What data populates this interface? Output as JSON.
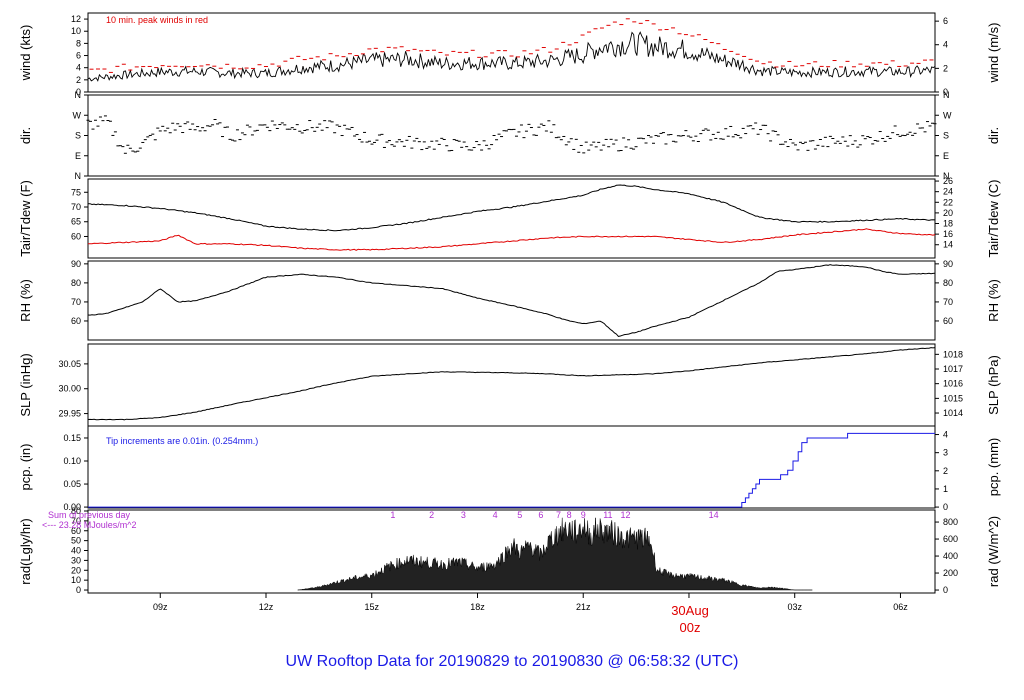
{
  "title": "UW Rooftop Data for 20190829  to  20190830 @ 06:58:32  (UTC)",
  "colors": {
    "black": "#000000",
    "red": "#e00000",
    "blue": "#1a1ae6",
    "purple": "#b030d0"
  },
  "x_axis": {
    "ticks": [
      {
        "t": 9,
        "label": "09z"
      },
      {
        "t": 12,
        "label": "12z"
      },
      {
        "t": 15,
        "label": "15z"
      },
      {
        "t": 18,
        "label": "18z"
      },
      {
        "t": 21,
        "label": "21z"
      },
      {
        "t": 24,
        "label": "00z"
      },
      {
        "t": 27,
        "label": "03z"
      },
      {
        "t": 30,
        "label": "06z"
      }
    ],
    "range": [
      6.95,
      30.98
    ],
    "date_label": "30Aug",
    "date_sub": "00z"
  },
  "chart_data": [
    {
      "type": "line",
      "ylabel": "wind (kts)",
      "ylabel_right": "wind (m/s)",
      "ylim": [
        0,
        13
      ],
      "yticks": [
        0,
        2,
        4,
        6,
        8,
        10,
        12
      ],
      "yticks_right": [
        {
          "v": 0,
          "label": "0"
        },
        {
          "v": 3.89,
          "label": "2"
        },
        {
          "v": 7.78,
          "label": "4"
        },
        {
          "v": 11.66,
          "label": "6"
        }
      ],
      "annotation": "10 min. peak winds in red",
      "series": [
        {
          "name": "wind",
          "color": "#000000",
          "x": [
            6.95,
            8,
            9,
            10,
            11,
            12,
            13,
            14,
            15,
            16,
            17,
            18,
            19,
            20,
            21,
            21.5,
            22,
            22.5,
            23,
            23.5,
            24,
            24.5,
            25,
            25.5,
            26,
            27,
            28,
            29,
            30,
            30.98
          ],
          "y": [
            2.2,
            2.8,
            3.3,
            3.4,
            3.1,
            3.1,
            4.0,
            4.4,
            5.2,
            5.4,
            4.7,
            4.8,
            4.7,
            5.1,
            6.2,
            7.4,
            7.8,
            8.0,
            7.5,
            7.3,
            6.9,
            6.0,
            5.2,
            4.6,
            3.5,
            3.2,
            3.3,
            3.4,
            3.3,
            3.6
          ]
        },
        {
          "name": "peak",
          "color": "#e00000",
          "x": [
            6.95,
            8,
            9,
            10,
            11,
            12,
            13,
            14,
            15,
            16,
            17,
            18,
            19,
            20,
            21,
            21.5,
            22,
            22.5,
            23,
            23.5,
            24,
            24.5,
            25,
            25.5,
            26,
            27,
            28,
            29,
            30,
            30.98
          ],
          "y": [
            3.4,
            4.0,
            4.5,
            4.6,
            4.3,
            4.4,
            5.4,
            5.9,
            7.0,
            7.0,
            6.2,
            6.3,
            6.2,
            6.9,
            9.0,
            10.5,
            11.5,
            12.0,
            11.0,
            10.5,
            9.5,
            8.5,
            7.2,
            6.5,
            5.0,
            4.4,
            4.6,
            4.7,
            4.6,
            5.0
          ]
        }
      ]
    },
    {
      "type": "scatter",
      "ylabel": "dir.",
      "ylabel_right": "dir.",
      "ylim": [
        0,
        360
      ],
      "yticks": [
        {
          "v": 0,
          "label": "N"
        },
        {
          "v": 90,
          "label": "E"
        },
        {
          "v": 180,
          "label": "S"
        },
        {
          "v": 270,
          "label": "W"
        },
        {
          "v": 360,
          "label": "N"
        }
      ],
      "series": [
        {
          "name": "dir",
          "color": "#000000",
          "x": [
            6.95,
            7.5,
            8,
            8.5,
            9,
            9.5,
            10,
            10.5,
            11,
            11.5,
            12,
            13,
            14,
            15,
            16,
            17,
            18,
            19,
            20,
            21,
            22,
            23,
            24,
            25,
            26,
            27,
            28,
            29,
            30,
            30.98
          ],
          "y": [
            230,
            240,
            110,
            140,
            200,
            220,
            210,
            230,
            180,
            200,
            230,
            220,
            215,
            160,
            150,
            140,
            130,
            190,
            220,
            120,
            140,
            160,
            180,
            190,
            210,
            130,
            150,
            160,
            200,
            220
          ]
        }
      ]
    },
    {
      "type": "line",
      "ylabel": "Tair/Tdew (F)",
      "ylabel_right": "Tair/Tdew (C)",
      "ylim": [
        52.7,
        79.5
      ],
      "yticks": [
        60,
        65,
        70,
        75
      ],
      "yticks_right": [
        {
          "v": 57.2,
          "label": "14"
        },
        {
          "v": 60.8,
          "label": "16"
        },
        {
          "v": 64.4,
          "label": "18"
        },
        {
          "v": 68,
          "label": "20"
        },
        {
          "v": 71.6,
          "label": "22"
        },
        {
          "v": 75.2,
          "label": "24"
        },
        {
          "v": 78.8,
          "label": "26"
        }
      ],
      "series": [
        {
          "name": "Tair",
          "color": "#000000",
          "x": [
            6.95,
            8,
            9,
            10,
            11,
            12,
            13,
            14,
            15,
            16,
            17,
            18,
            19,
            20,
            21,
            21.5,
            22,
            22.5,
            23,
            24,
            25,
            26,
            27,
            28,
            29,
            30,
            30.98
          ],
          "y": [
            71,
            70.5,
            69.5,
            68,
            66,
            63.5,
            62.5,
            62,
            63,
            64.5,
            66.5,
            68.5,
            70,
            72,
            74,
            76,
            77.5,
            77,
            76,
            74.5,
            71.5,
            66.5,
            65,
            65,
            65.5,
            66,
            65.5
          ]
        },
        {
          "name": "Tdew",
          "color": "#e00000",
          "x": [
            6.95,
            8,
            9,
            9.5,
            10,
            11,
            12,
            13,
            14,
            15,
            16,
            17,
            18,
            19,
            20,
            21,
            22,
            23,
            24,
            25,
            26,
            27,
            28,
            29,
            30,
            30.98
          ],
          "y": [
            57.5,
            58,
            58.5,
            60.5,
            57.5,
            57.5,
            57,
            56,
            55.5,
            55.5,
            56,
            56.5,
            57.5,
            58.5,
            59.5,
            60,
            60,
            60,
            59,
            58,
            59,
            60.5,
            61.5,
            62.5,
            61,
            60.5
          ]
        }
      ]
    },
    {
      "type": "line",
      "ylabel": "RH (%)",
      "ylabel_right": "RH (%)",
      "ylim": [
        50,
        91.5
      ],
      "yticks": [
        60,
        70,
        80,
        90
      ],
      "yticks_right": [
        {
          "v": 60,
          "label": "60"
        },
        {
          "v": 70,
          "label": "70"
        },
        {
          "v": 80,
          "label": "80"
        },
        {
          "v": 90,
          "label": "90"
        }
      ],
      "series": [
        {
          "name": "RH",
          "color": "#000000",
          "x": [
            6.95,
            7.5,
            8,
            8.5,
            9,
            9.5,
            10,
            11,
            12,
            13,
            14,
            15,
            16,
            17,
            18,
            19,
            20,
            20.5,
            21,
            21.5,
            22,
            22.5,
            23,
            23.5,
            24,
            25,
            26,
            26.5,
            27,
            28,
            29,
            29.5,
            30,
            30.98
          ],
          "y": [
            63,
            64,
            67,
            70,
            77,
            70,
            70.5,
            76,
            83,
            84.5,
            83,
            80,
            78.5,
            77,
            72,
            68,
            63.5,
            60.5,
            58.5,
            60,
            52,
            54,
            57,
            59.5,
            62,
            71,
            80,
            86,
            87,
            89.5,
            88.5,
            86,
            84.5,
            85
          ]
        }
      ]
    },
    {
      "type": "line",
      "ylabel": "SLP (inHg)",
      "ylabel_right": "SLP (hPa)",
      "ylim": [
        29.925,
        30.09
      ],
      "yticks": [
        {
          "v": 29.95,
          "label": "29.95"
        },
        {
          "v": 30.0,
          "label": "30.00"
        },
        {
          "v": 30.05,
          "label": "30.05"
        }
      ],
      "yticks_right": [
        {
          "v": 29.9511,
          "label": "1014"
        },
        {
          "v": 29.9806,
          "label": "1015"
        },
        {
          "v": 30.0102,
          "label": "1016"
        },
        {
          "v": 30.0397,
          "label": "1017"
        },
        {
          "v": 30.0692,
          "label": "1018"
        }
      ],
      "series": [
        {
          "name": "SLP",
          "color": "#000000",
          "x": [
            6.95,
            8,
            9,
            10,
            11,
            12,
            13,
            14,
            15,
            16,
            17,
            18,
            19,
            20,
            21,
            22,
            23,
            24,
            25,
            26,
            27,
            28,
            29,
            30,
            30.98
          ],
          "y": [
            29.938,
            29.938,
            29.942,
            29.953,
            29.968,
            29.982,
            29.996,
            30.012,
            30.025,
            30.03,
            30.034,
            30.033,
            30.032,
            30.03,
            30.026,
            30.028,
            30.03,
            30.036,
            30.044,
            30.052,
            30.058,
            30.064,
            30.07,
            30.078,
            30.083
          ]
        }
      ]
    },
    {
      "type": "line",
      "ylabel": "pcp. (in)",
      "ylabel_right": "pcp. (mm)",
      "ylim": [
        -0.002,
        0.176
      ],
      "yticks": [
        {
          "v": 0,
          "label": "0.00"
        },
        {
          "v": 0.05,
          "label": "0.05"
        },
        {
          "v": 0.1,
          "label": "0.10"
        },
        {
          "v": 0.15,
          "label": "0.15"
        }
      ],
      "yticks_right": [
        {
          "v": 0,
          "label": "0"
        },
        {
          "v": 0.03937,
          "label": "1"
        },
        {
          "v": 0.07874,
          "label": "2"
        },
        {
          "v": 0.11811,
          "label": "3"
        },
        {
          "v": 0.15748,
          "label": "4"
        }
      ],
      "annotation": "Tip increments are 0.01in. (0.254mm.)",
      "series": [
        {
          "name": "pcp",
          "color": "#1a1ae6",
          "x": [
            6.95,
            25.45,
            25.5,
            25.6,
            25.7,
            25.8,
            25.9,
            26.0,
            26.2,
            26.4,
            26.6,
            26.8,
            26.95,
            27.1,
            27.2,
            27.35,
            27.6,
            28.0,
            28.5,
            29.0,
            30.98
          ],
          "y": [
            0,
            0,
            0.01,
            0.02,
            0.03,
            0.04,
            0.05,
            0.06,
            0.06,
            0.06,
            0.07,
            0.08,
            0.1,
            0.12,
            0.14,
            0.15,
            0.15,
            0.15,
            0.16,
            0.16,
            0.16
          ]
        }
      ]
    },
    {
      "type": "area",
      "ylabel": "rad(Lgly/hr)",
      "ylabel_right": "rad (W/m^2)",
      "ylim": [
        -3,
        81
      ],
      "yticks": [
        0,
        10,
        20,
        30,
        40,
        50,
        60,
        70,
        80
      ],
      "yticks_right": [
        {
          "v": 0,
          "label": "0"
        },
        {
          "v": 17.2,
          "label": "200"
        },
        {
          "v": 34.4,
          "label": "400"
        },
        {
          "v": 51.6,
          "label": "600"
        },
        {
          "v": 68.8,
          "label": "800"
        }
      ],
      "annotation_line1": "Sum of previous day",
      "annotation_line2": "<--- 23.28 MJoules/m^2",
      "markers": [
        {
          "t": 15.6,
          "label": "1"
        },
        {
          "t": 16.7,
          "label": "2"
        },
        {
          "t": 17.6,
          "label": "3"
        },
        {
          "t": 18.5,
          "label": "4"
        },
        {
          "t": 19.2,
          "label": "5"
        },
        {
          "t": 19.8,
          "label": "6"
        },
        {
          "t": 20.3,
          "label": "7"
        },
        {
          "t": 20.6,
          "label": "8"
        },
        {
          "t": 21.0,
          "label": "9"
        },
        {
          "t": 21.7,
          "label": "11"
        },
        {
          "t": 22.2,
          "label": "12"
        },
        {
          "t": 24.7,
          "label": "14"
        }
      ],
      "series": [
        {
          "name": "rad",
          "color": "#000000",
          "x": [
            12.9,
            13.5,
            14,
            14.5,
            15,
            15.5,
            16,
            16.5,
            17,
            17.5,
            18,
            18.5,
            19,
            19.2,
            19.5,
            19.8,
            20,
            20.2,
            20.4,
            20.6,
            20.8,
            21,
            21.2,
            21.4,
            21.6,
            21.8,
            22,
            22.3,
            22.6,
            22.9,
            23.1,
            23.5,
            24,
            24.5,
            25,
            25.5,
            26,
            26.3,
            26.6,
            27,
            27.5
          ],
          "y": [
            0,
            3,
            8,
            12,
            15,
            24,
            30,
            28,
            26,
            28,
            22,
            26,
            45,
            38,
            45,
            35,
            48,
            55,
            60,
            62,
            58,
            65,
            55,
            62,
            60,
            58,
            55,
            52,
            53,
            50,
            20,
            15,
            14,
            12,
            10,
            5,
            2,
            3,
            2,
            0,
            0
          ]
        }
      ]
    }
  ]
}
